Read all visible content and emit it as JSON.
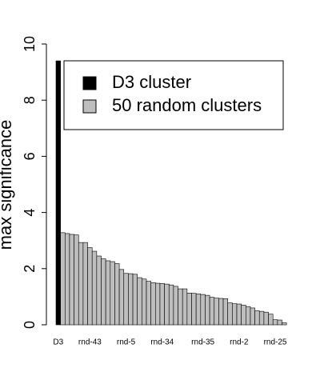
{
  "chart_data": {
    "type": "bar",
    "ylabel": "max significance",
    "categories": [
      "D3",
      null,
      null,
      null,
      null,
      null,
      null,
      "rnd-43",
      null,
      null,
      null,
      null,
      null,
      null,
      null,
      "rnd-5",
      null,
      null,
      null,
      null,
      null,
      null,
      null,
      "rnd-34",
      null,
      null,
      null,
      null,
      null,
      null,
      null,
      null,
      "rnd-35",
      null,
      null,
      null,
      null,
      null,
      null,
      null,
      "rnd-2",
      null,
      null,
      null,
      null,
      null,
      null,
      null,
      "rnd-25",
      null,
      null
    ],
    "series": [
      {
        "name": "D3 cluster",
        "color": "#000000",
        "values": [
          9.4,
          null,
          null,
          null,
          null,
          null,
          null,
          null,
          null,
          null,
          null,
          null,
          null,
          null,
          null,
          null,
          null,
          null,
          null,
          null,
          null,
          null,
          null,
          null,
          null,
          null,
          null,
          null,
          null,
          null,
          null,
          null,
          null,
          null,
          null,
          null,
          null,
          null,
          null,
          null,
          null,
          null,
          null,
          null,
          null,
          null,
          null,
          null,
          null,
          null,
          null
        ]
      },
      {
        "name": "50 random clusters",
        "color": "#bebebe",
        "values": [
          null,
          3.28,
          3.25,
          3.22,
          3.2,
          2.93,
          2.93,
          2.75,
          2.62,
          2.45,
          2.35,
          2.28,
          2.25,
          2.18,
          1.97,
          1.83,
          1.82,
          1.8,
          1.68,
          1.63,
          1.55,
          1.5,
          1.48,
          1.47,
          1.45,
          1.42,
          1.37,
          1.28,
          1.28,
          1.13,
          1.12,
          1.1,
          1.08,
          1.05,
          0.98,
          0.95,
          0.94,
          0.93,
          0.78,
          0.75,
          0.74,
          0.7,
          0.65,
          0.6,
          0.5,
          0.48,
          0.45,
          0.38,
          0.18,
          0.17,
          0.07
        ]
      }
    ],
    "ylim": [
      0,
      10
    ],
    "yticks": [
      0,
      2,
      4,
      6,
      8,
      10
    ],
    "legend": "top-right"
  }
}
